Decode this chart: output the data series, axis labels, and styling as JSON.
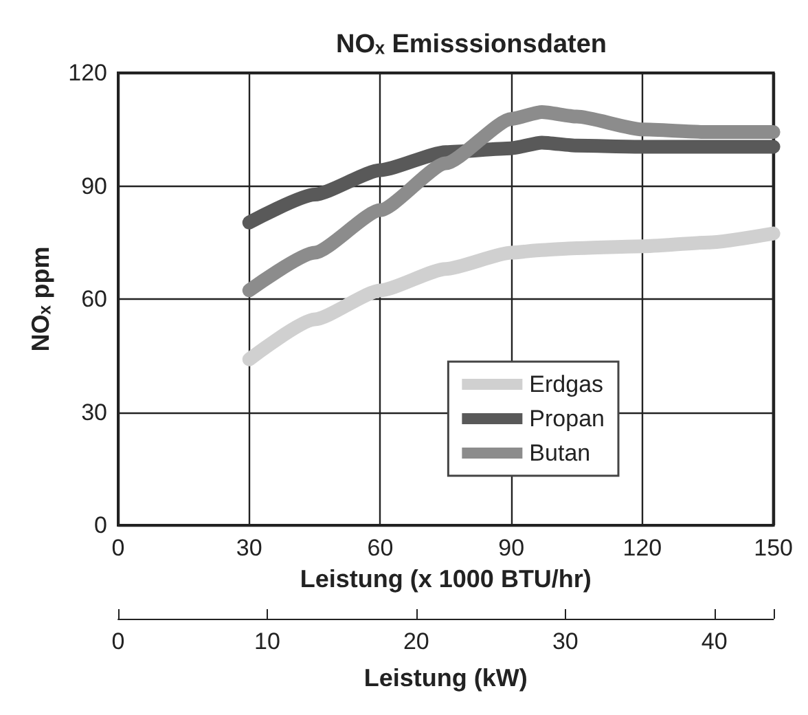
{
  "chart_data": {
    "type": "line",
    "title": "NOₓ Emisssionsdaten",
    "xlabel": "Leistung (x 1000 BTU/hr)",
    "ylabel": "NOₓ ppm",
    "x2label": "Leistung (kW)",
    "x": [
      30,
      45,
      60,
      75,
      90,
      97,
      105,
      120,
      135,
      150
    ],
    "series": [
      {
        "name": "Erdgas",
        "color": "#d0d0d0",
        "values": [
          44,
          54.6,
          62.3,
          68,
          72.3,
          73,
          73.5,
          74,
          75,
          77.4
        ]
      },
      {
        "name": "Propan",
        "color": "#595959",
        "values": [
          80.3,
          87.7,
          94.2,
          99,
          100,
          101.5,
          100.7,
          100.4,
          100.4,
          100.4
        ]
      },
      {
        "name": "Butan",
        "color": "#8c8c8c",
        "values": [
          62.3,
          72.3,
          83.6,
          96,
          107.8,
          109.6,
          108.4,
          105,
          104.3,
          104.3
        ]
      }
    ],
    "xlim": [
      0,
      150
    ],
    "xticks": [
      0,
      30,
      60,
      90,
      120,
      150
    ],
    "ylim": [
      0,
      120
    ],
    "yticks": [
      0,
      30,
      60,
      90,
      120
    ],
    "x2lim": [
      0,
      43.96
    ],
    "x2ticks": [
      0,
      10,
      20,
      30,
      40,
      {
        "value": 43.96,
        "label": null
      }
    ],
    "grid": true,
    "legend": "right",
    "line_style": "solid"
  }
}
